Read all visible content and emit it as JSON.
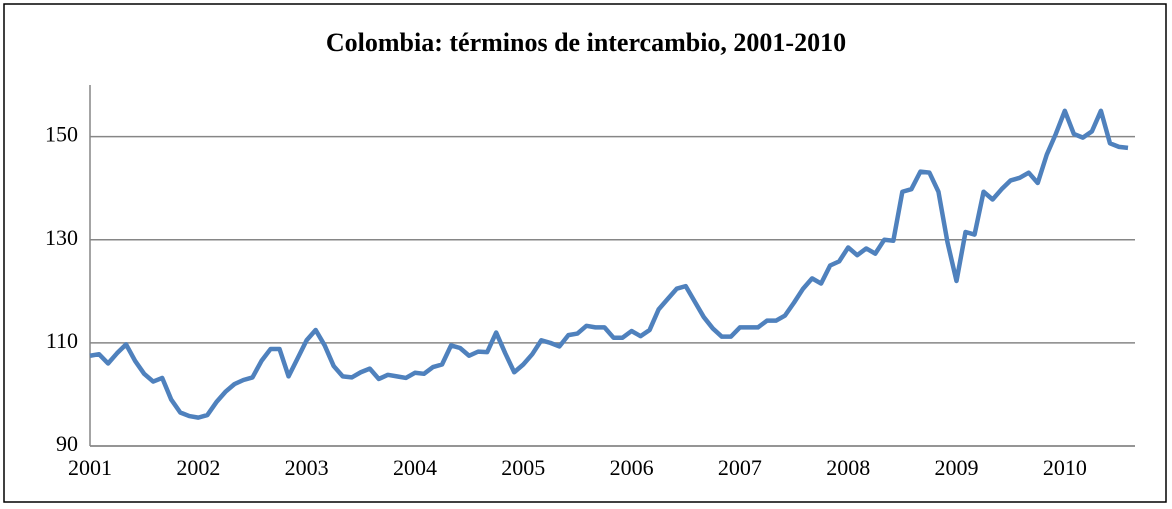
{
  "chart_data": {
    "type": "line",
    "title": "Colombia: términos de intercambio, 2001-2010",
    "categories": [
      "2001",
      null,
      null,
      null,
      null,
      null,
      null,
      null,
      null,
      null,
      null,
      null,
      "2002",
      null,
      null,
      null,
      null,
      null,
      null,
      null,
      null,
      null,
      null,
      null,
      "2003",
      null,
      null,
      null,
      null,
      null,
      null,
      null,
      null,
      null,
      null,
      null,
      "2004",
      null,
      null,
      null,
      null,
      null,
      null,
      null,
      null,
      null,
      null,
      null,
      "2005",
      null,
      null,
      null,
      null,
      null,
      null,
      null,
      null,
      null,
      null,
      null,
      "2006",
      null,
      null,
      null,
      null,
      null,
      null,
      null,
      null,
      null,
      null,
      null,
      "2007",
      null,
      null,
      null,
      null,
      null,
      null,
      null,
      null,
      null,
      null,
      null,
      "2008",
      null,
      null,
      null,
      null,
      null,
      null,
      null,
      null,
      null,
      null,
      null,
      "2009",
      null,
      null,
      null,
      null,
      null,
      null,
      null,
      null,
      null,
      null,
      null,
      "2010",
      null,
      null,
      null,
      null,
      null,
      null,
      null
    ],
    "series": [
      {
        "color": "#4f81bd",
        "values": [
          107.5,
          107.8,
          106,
          108,
          109.7,
          106.5,
          104,
          102.5,
          103.2,
          99,
          96.5,
          95.8,
          95.5,
          96,
          98.5,
          100.5,
          102,
          102.8,
          103.3,
          106.5,
          108.8,
          108.8,
          103.5,
          107,
          110.5,
          112.5,
          109.5,
          105.5,
          103.5,
          103.3,
          104.3,
          105,
          103,
          103.8,
          103.5,
          103.2,
          104.2,
          104,
          105.3,
          105.8,
          109.5,
          109,
          107.5,
          108.3,
          108.2,
          112,
          108,
          104.3,
          105.8,
          107.8,
          110.5,
          110,
          109.3,
          111.5,
          111.8,
          113.3,
          113,
          113,
          111,
          111,
          112.3,
          111.3,
          112.5,
          116.5,
          118.5,
          120.5,
          121,
          118,
          115,
          112.8,
          111.2,
          111.2,
          113,
          113,
          113,
          114.3,
          114.3,
          115.3,
          117.8,
          120.5,
          122.5,
          121.5,
          125,
          125.8,
          128.5,
          127,
          128.3,
          127.3,
          130,
          129.8,
          139.3,
          139.8,
          143.2,
          143,
          139.3,
          129.5,
          122,
          131.5,
          131,
          139.3,
          137.8,
          139.8,
          141.5,
          142,
          143,
          141,
          146.5,
          150.5,
          155,
          150.5,
          149.8,
          151,
          155,
          148.7,
          148,
          147.8
        ]
      }
    ],
    "ylim": [
      90,
      160
    ],
    "yticks": [
      90,
      110,
      130,
      150
    ],
    "grid": true
  }
}
